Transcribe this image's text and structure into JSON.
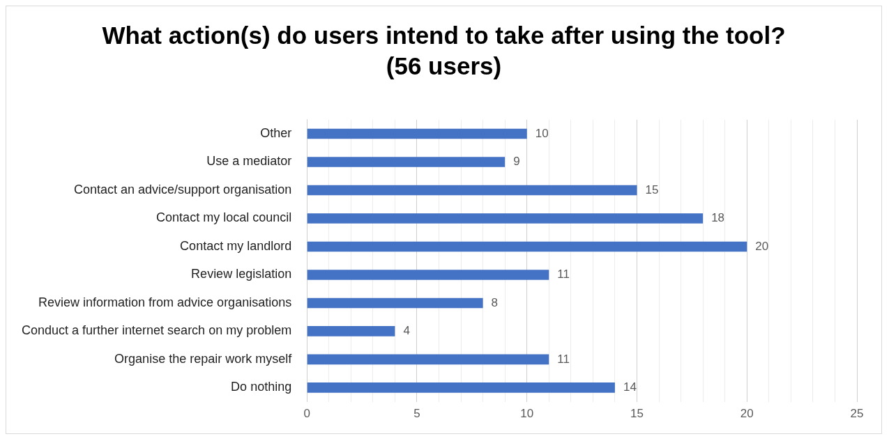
{
  "chart_data": {
    "type": "bar",
    "orientation": "horizontal",
    "title": "What action(s) do users intend to take after using the tool? (56 users)",
    "categories": [
      "Other",
      "Use a mediator",
      "Contact an advice/support organisation",
      "Contact my local council",
      "Contact my landlord",
      "Review legislation",
      "Review information from advice organisations",
      "Conduct a further internet search on my problem",
      "Organise the repair work myself",
      "Do nothing"
    ],
    "values": [
      10,
      9,
      15,
      18,
      20,
      11,
      8,
      4,
      11,
      14
    ],
    "color": "#4472c4",
    "data_labels": true,
    "grid": "x",
    "legend": false,
    "xlim": [
      0,
      25
    ],
    "xticks": [
      0,
      {
        "value": 1,
        "label": null
      },
      {
        "value": 2,
        "label": null
      },
      {
        "value": 3,
        "label": null
      },
      {
        "value": 4,
        "label": null
      },
      5,
      {
        "value": 6,
        "label": null
      },
      {
        "value": 7,
        "label": null
      },
      {
        "value": 8,
        "label": null
      },
      {
        "value": 9,
        "label": null
      },
      10,
      {
        "value": 11,
        "label": null
      },
      {
        "value": 12,
        "label": null
      },
      {
        "value": 13,
        "label": null
      },
      {
        "value": 14,
        "label": null
      },
      15,
      {
        "value": 16,
        "label": null
      },
      {
        "value": 17,
        "label": null
      },
      {
        "value": 18,
        "label": null
      },
      {
        "value": 19,
        "label": null
      },
      20,
      {
        "value": 21,
        "label": null
      },
      {
        "value": 22,
        "label": null
      },
      {
        "value": 23,
        "label": null
      },
      {
        "value": 24,
        "label": null
      },
      25
    ]
  }
}
